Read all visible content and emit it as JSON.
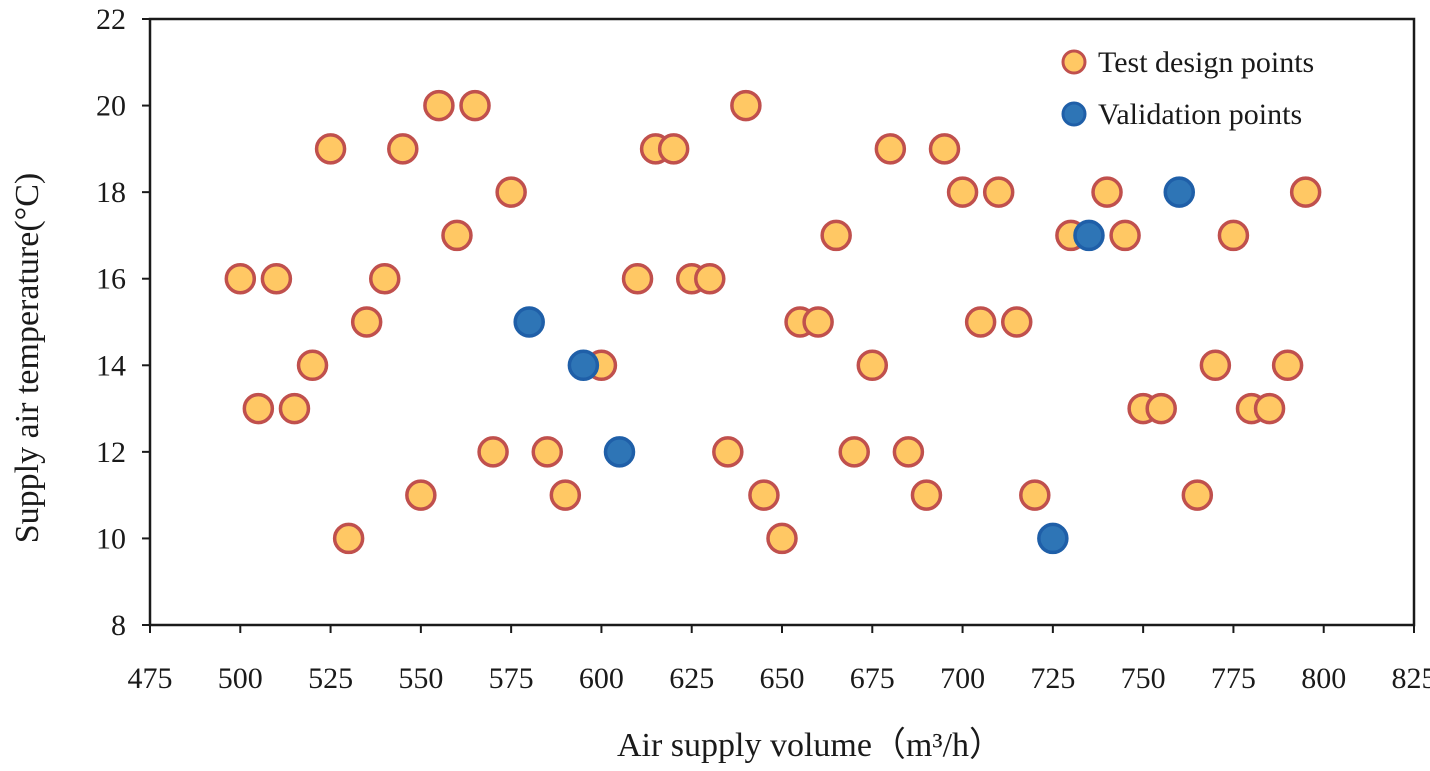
{
  "chart_data": {
    "type": "scatter",
    "xlabel": "Air supply volume（m³/h）",
    "ylabel": "Supply air temperature(°C)",
    "xlim": [
      475,
      825
    ],
    "ylim": [
      8,
      22
    ],
    "xticks": [
      "475",
      "500",
      "525",
      "550",
      "575",
      "600",
      "625",
      "650",
      "675",
      "700",
      "725",
      "750",
      "775",
      "800",
      "825"
    ],
    "yticks": [
      "8",
      "10",
      "12",
      "14",
      "16",
      "18",
      "20",
      "22"
    ],
    "grid": false,
    "legend_position": "top-right",
    "series": [
      {
        "name": "Test design points",
        "color": "#FFC864",
        "edge_color": "#C0504D",
        "points": [
          [
            500,
            16
          ],
          [
            505,
            13
          ],
          [
            510,
            16
          ],
          [
            515,
            13
          ],
          [
            520,
            14
          ],
          [
            525,
            19
          ],
          [
            530,
            10
          ],
          [
            535,
            15
          ],
          [
            540,
            16
          ],
          [
            545,
            19
          ],
          [
            550,
            11
          ],
          [
            555,
            20
          ],
          [
            560,
            17
          ],
          [
            565,
            20
          ],
          [
            570,
            12
          ],
          [
            575,
            18
          ],
          [
            585,
            12
          ],
          [
            590,
            11
          ],
          [
            600,
            14
          ],
          [
            610,
            16
          ],
          [
            615,
            19
          ],
          [
            620,
            19
          ],
          [
            625,
            16
          ],
          [
            630,
            16
          ],
          [
            635,
            12
          ],
          [
            640,
            20
          ],
          [
            645,
            11
          ],
          [
            650,
            10
          ],
          [
            655,
            15
          ],
          [
            660,
            15
          ],
          [
            665,
            17
          ],
          [
            670,
            12
          ],
          [
            675,
            14
          ],
          [
            680,
            19
          ],
          [
            685,
            12
          ],
          [
            690,
            11
          ],
          [
            695,
            19
          ],
          [
            700,
            18
          ],
          [
            705,
            15
          ],
          [
            710,
            18
          ],
          [
            715,
            15
          ],
          [
            720,
            11
          ],
          [
            730,
            17
          ],
          [
            740,
            18
          ],
          [
            745,
            17
          ],
          [
            750,
            13
          ],
          [
            755,
            13
          ],
          [
            765,
            11
          ],
          [
            770,
            14
          ],
          [
            775,
            17
          ],
          [
            780,
            13
          ],
          [
            785,
            13
          ],
          [
            790,
            14
          ],
          [
            795,
            18
          ]
        ]
      },
      {
        "name": "Validation points",
        "color": "#2E75B6",
        "edge_color": "#1F5FA8",
        "points": [
          [
            580,
            15
          ],
          [
            595,
            14
          ],
          [
            605,
            12
          ],
          [
            725,
            10
          ],
          [
            735,
            17
          ],
          [
            760,
            18
          ]
        ]
      }
    ]
  }
}
